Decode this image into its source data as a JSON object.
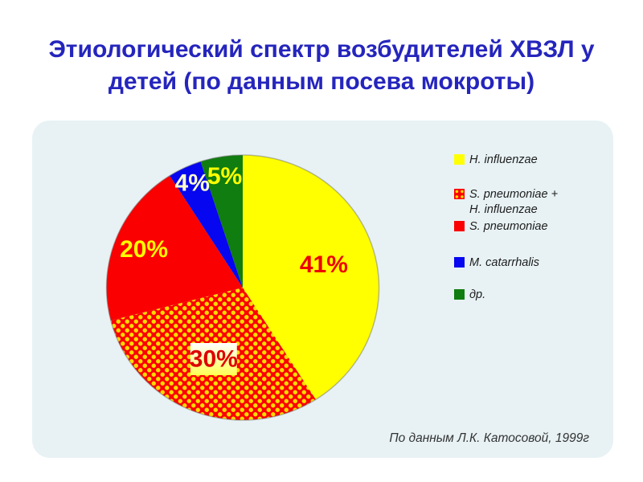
{
  "title": "Этиологический спектр возбудителей ХВЗЛ у\nдетей (по данным посева мокроты)",
  "source_note": "По данным Л.К. Катосовой, 1999г",
  "colors": {
    "title_blue": "#2525bd",
    "panel_bg": "#e8f2f4",
    "page_bg": "#ffffff",
    "checker_red": "#fa0000",
    "checker_dot": "#ffd900",
    "pie_outline": "#6a6a6a"
  },
  "chart_data": {
    "type": "pie",
    "title": "Этиологический спектр возбудителей ХВЗЛ у детей (по данным посева мокроты)",
    "start_angle_deg": 0,
    "direction": "clockwise",
    "legend_position": "right",
    "series": [
      {
        "label": "H. influenzae",
        "value": 41,
        "color": "#ffff00",
        "pct_label": "41%",
        "label_color": "#ee0000",
        "label_r": 0.62,
        "label_boxed": false
      },
      {
        "label": "S. pneumoniae +\nH. influenzae",
        "value": 30,
        "color": "checker",
        "pct_label": "30%",
        "label_color": "#dd0000",
        "label_r": 0.58,
        "label_boxed": true
      },
      {
        "label": "S. pneumoniae",
        "value": 20,
        "color": "#fa0000",
        "pct_label": "20%",
        "label_color": "#ffff00",
        "label_r": 0.78,
        "label_boxed": false
      },
      {
        "label": "M. catarrhalis",
        "value": 4,
        "color": "#0606f0",
        "pct_label": "4%",
        "label_color": "#ffffcc",
        "label_r": 0.87,
        "label_boxed": false
      },
      {
        "label": "др.",
        "value": 5,
        "color": "#0f7d0f",
        "pct_label": "5%",
        "label_color": "#ffff00",
        "label_r": 0.85,
        "label_boxed": false
      }
    ]
  }
}
